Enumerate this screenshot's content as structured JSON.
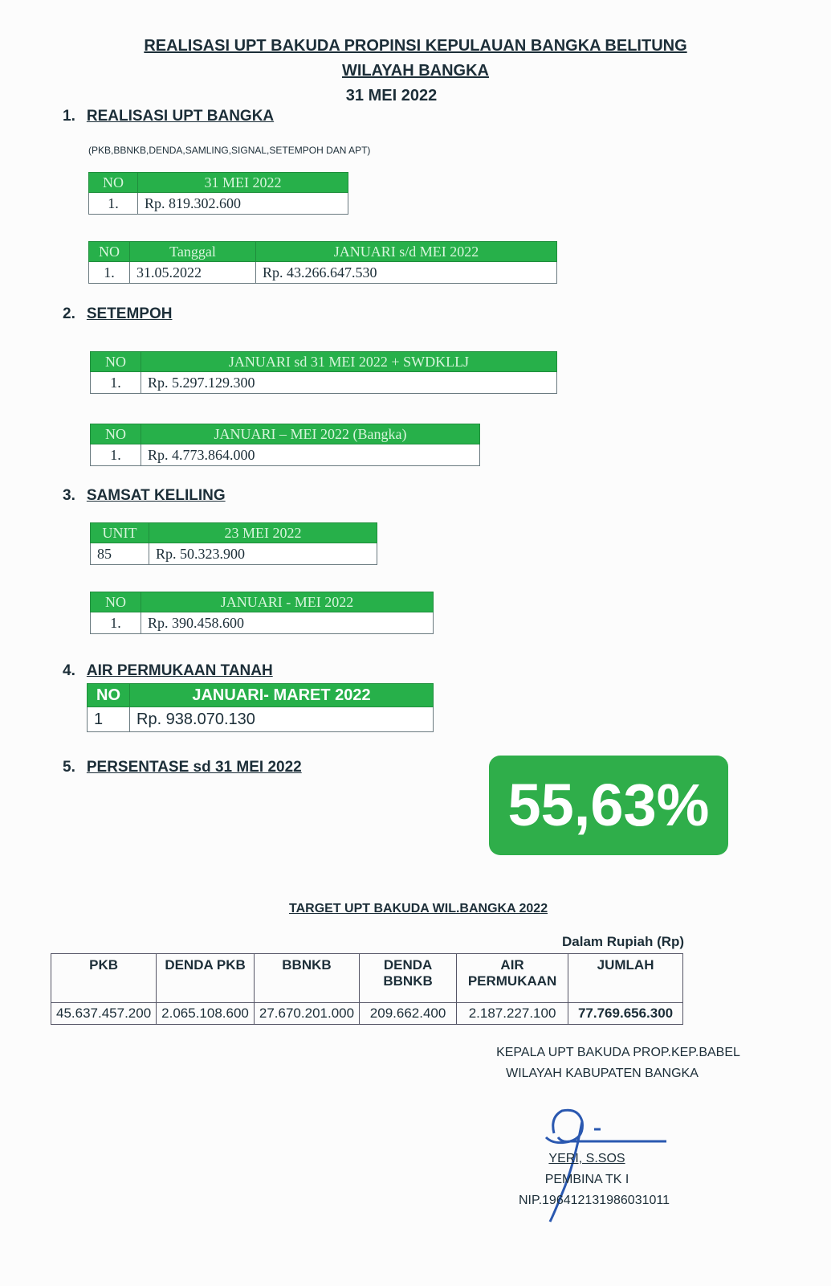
{
  "header": {
    "line1": "REALISASI UPT BAKUDA PROPINSI KEPULAUAN BANGKA BELITUNG",
    "line2": "WILAYAH BANGKA",
    "line3": "31 MEI 2022"
  },
  "sections": [
    {
      "num": "1.",
      "title": "REALISASI UPT BANGKA",
      "note": "(PKB,BBNKB,DENDA,SAMLING,SIGNAL,SETEMPOH DAN APT)",
      "tables": [
        {
          "headers": [
            "NO",
            "31 MEI 2022"
          ],
          "row": [
            "1.",
            "Rp.  819.302.600"
          ]
        },
        {
          "headers": [
            "NO",
            "Tanggal",
            "JANUARI s/d  MEI 2022"
          ],
          "row": [
            "1.",
            "31.05.2022",
            "Rp. 43.266.647.530"
          ]
        }
      ]
    },
    {
      "num": "2.",
      "title": "SETEMPOH",
      "tables": [
        {
          "headers": [
            "NO",
            "JANUARI sd 31 MEI 2022 + SWDKLLJ"
          ],
          "row": [
            "1.",
            "Rp. 5.297.129.300"
          ]
        },
        {
          "headers": [
            "NO",
            "JANUARI – MEI 2022 (Bangka)"
          ],
          "row": [
            "1.",
            "Rp. 4.773.864.000"
          ]
        }
      ]
    },
    {
      "num": "3.",
      "title": "SAMSAT KELILING",
      "tables": [
        {
          "headers": [
            "UNIT",
            "23 MEI 2022"
          ],
          "row": [
            "85",
            "Rp. 50.323.900"
          ]
        },
        {
          "headers": [
            "NO",
            "JANUARI - MEI 2022"
          ],
          "row": [
            "1.",
            "Rp. 390.458.600"
          ]
        }
      ]
    },
    {
      "num": "4.",
      "title": "AIR PERMUKAAN TANAH",
      "tables": [
        {
          "headers": [
            "NO",
            "JANUARI- MARET 2022"
          ],
          "row": [
            "1",
            "Rp. 938.070.130"
          ]
        }
      ]
    },
    {
      "num": "5.",
      "title": "PERSENTASE sd 31 MEI 2022",
      "value": "55,63%"
    }
  ],
  "target": {
    "title": "TARGET UPT BAKUDA WIL.BANGKA 2022",
    "unit": "Dalam Rupiah (Rp)",
    "headers": [
      "PKB",
      "DENDA PKB",
      "BBNKB",
      "DENDA BBNKB",
      "AIR PERMUKAAN",
      "JUMLAH"
    ],
    "values": [
      "45.637.457.200",
      "2.065.108.600",
      "27.670.201.000",
      "209.662.400",
      "2.187.227.100",
      "77.769.656.300"
    ]
  },
  "signature": {
    "line1": "KEPALA UPT BAKUDA PROP.KEP.BABEL",
    "line2": "WILAYAH KABUPATEN BANGKA",
    "name": "YERI, S.SOS",
    "rank": "PEMBINA TK I",
    "nip": "NIP.196412131986031011"
  },
  "colors": {
    "green": "#27b04a",
    "signature_ink": "#2a58b0"
  }
}
